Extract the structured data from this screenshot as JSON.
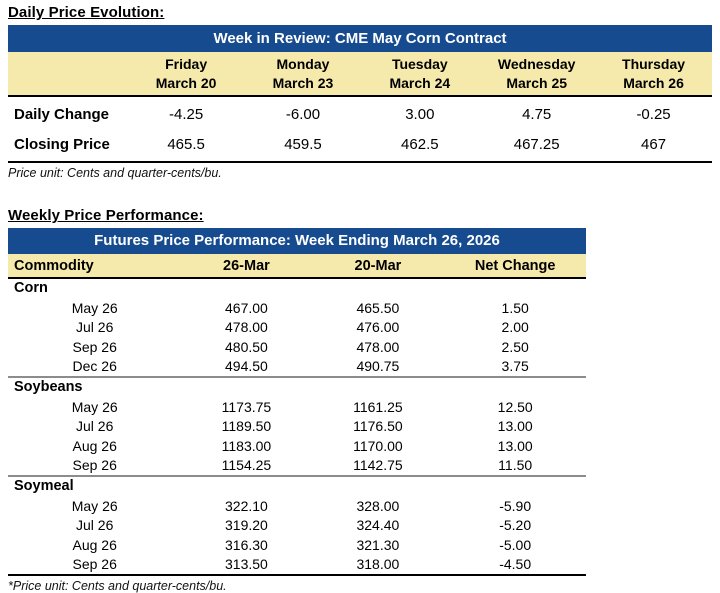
{
  "colors": {
    "header_blue": "#164b8f",
    "band_cream": "#f5e9ab",
    "group_separator_gray": "#8c8c8c",
    "rule_black": "#000000"
  },
  "daily": {
    "heading": "Daily Price Evolution:",
    "title": "Week in Review: CME May Corn Contract",
    "day_columns": [
      {
        "day": "Friday",
        "date": "March 20"
      },
      {
        "day": "Monday",
        "date": "March 23"
      },
      {
        "day": "Tuesday",
        "date": "March 24"
      },
      {
        "day": "Wednesday",
        "date": "March 25"
      },
      {
        "day": "Thursday",
        "date": "March 26"
      }
    ],
    "rows": [
      {
        "label": "Daily Change",
        "values": [
          "-4.25",
          "-6.00",
          "3.00",
          "4.75",
          "-0.25"
        ]
      },
      {
        "label": "Closing Price",
        "values": [
          "465.5",
          "459.5",
          "462.5",
          "467.25",
          "467"
        ]
      }
    ],
    "footnote": "Price unit: Cents and quarter-cents/bu."
  },
  "weekly": {
    "heading": "Weekly Price Performance:",
    "title": "Futures Price Performance: Week Ending March 26, 2026",
    "columns": [
      "Commodity",
      "26-Mar",
      "20-Mar",
      "Net Change"
    ],
    "groups": [
      {
        "name": "Corn",
        "rows": [
          [
            "May 26",
            "467.00",
            "465.50",
            "1.50"
          ],
          [
            "Jul 26",
            "478.00",
            "476.00",
            "2.00"
          ],
          [
            "Sep 26",
            "480.50",
            "478.00",
            "2.50"
          ],
          [
            "Dec 26",
            "494.50",
            "490.75",
            "3.75"
          ]
        ]
      },
      {
        "name": "Soybeans",
        "rows": [
          [
            "May 26",
            "1173.75",
            "1161.25",
            "12.50"
          ],
          [
            "Jul 26",
            "1189.50",
            "1176.50",
            "13.00"
          ],
          [
            "Aug 26",
            "1183.00",
            "1170.00",
            "13.00"
          ],
          [
            "Sep 26",
            "1154.25",
            "1142.75",
            "11.50"
          ]
        ]
      },
      {
        "name": "Soymeal",
        "rows": [
          [
            "May 26",
            "322.10",
            "328.00",
            "-5.90"
          ],
          [
            "Jul 26",
            "319.20",
            "324.40",
            "-5.20"
          ],
          [
            "Aug 26",
            "316.30",
            "321.30",
            "-5.00"
          ],
          [
            "Sep 26",
            "313.50",
            "318.00",
            "-4.50"
          ]
        ]
      }
    ],
    "footnote": "*Price unit: Cents and quarter-cents/bu."
  }
}
